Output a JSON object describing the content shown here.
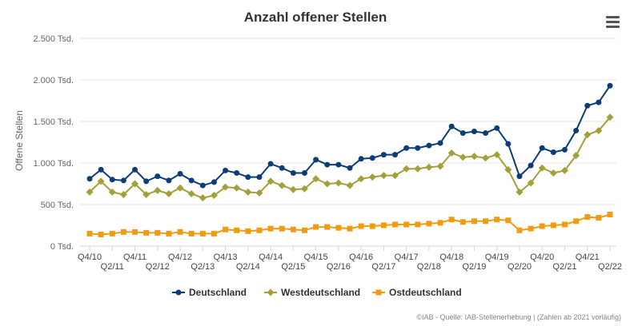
{
  "chart_data": {
    "type": "line",
    "title": "Anzahl offener Stellen",
    "ylabel": "Offene Stellen",
    "ylim": [
      0,
      2500
    ],
    "yticks": [
      {
        "value": 0,
        "label": "0 Tsd."
      },
      {
        "value": 500,
        "label": "500 Tsd."
      },
      {
        "value": 1000,
        "label": "1.000 Tsd."
      },
      {
        "value": 1500,
        "label": "1.500 Tsd."
      },
      {
        "value": 2000,
        "label": "2.000 Tsd."
      },
      {
        "value": 2500,
        "label": "2.500 Tsd."
      }
    ],
    "grid": true,
    "legend_position": "bottom-center",
    "categories": [
      "Q4/10",
      "Q1/11",
      "Q2/11",
      "Q3/11",
      "Q4/11",
      "Q1/12",
      "Q2/12",
      "Q3/12",
      "Q4/12",
      "Q1/13",
      "Q2/13",
      "Q3/13",
      "Q4/13",
      "Q1/14",
      "Q2/14",
      "Q3/14",
      "Q4/14",
      "Q1/15",
      "Q2/15",
      "Q3/15",
      "Q4/15",
      "Q1/16",
      "Q2/16",
      "Q3/16",
      "Q4/16",
      "Q1/17",
      "Q2/17",
      "Q3/17",
      "Q4/17",
      "Q1/18",
      "Q2/18",
      "Q3/18",
      "Q4/18",
      "Q1/19",
      "Q2/19",
      "Q3/19",
      "Q4/19",
      "Q1/20",
      "Q2/20",
      "Q3/20",
      "Q4/20",
      "Q1/21",
      "Q2/21",
      "Q3/21",
      "Q4/21",
      "Q1/22",
      "Q2/22"
    ],
    "x_tick_labels": [
      {
        "index": 0,
        "label": "Q4/10",
        "row": 0
      },
      {
        "index": 2,
        "label": "Q2/11",
        "row": 1
      },
      {
        "index": 4,
        "label": "Q4/11",
        "row": 0
      },
      {
        "index": 6,
        "label": "Q2/12",
        "row": 1
      },
      {
        "index": 8,
        "label": "Q4/12",
        "row": 0
      },
      {
        "index": 10,
        "label": "Q2/13",
        "row": 1
      },
      {
        "index": 12,
        "label": "Q4/13",
        "row": 0
      },
      {
        "index": 14,
        "label": "Q2/14",
        "row": 1
      },
      {
        "index": 16,
        "label": "Q4/14",
        "row": 0
      },
      {
        "index": 18,
        "label": "Q2/15",
        "row": 1
      },
      {
        "index": 20,
        "label": "Q4/15",
        "row": 0
      },
      {
        "index": 22,
        "label": "Q2/16",
        "row": 1
      },
      {
        "index": 24,
        "label": "Q4/16",
        "row": 0
      },
      {
        "index": 26,
        "label": "Q2/17",
        "row": 1
      },
      {
        "index": 28,
        "label": "Q4/17",
        "row": 0
      },
      {
        "index": 30,
        "label": "Q2/18",
        "row": 1
      },
      {
        "index": 32,
        "label": "Q4/18",
        "row": 0
      },
      {
        "index": 34,
        "label": "Q2/19",
        "row": 1
      },
      {
        "index": 36,
        "label": "Q4/19",
        "row": 0
      },
      {
        "index": 38,
        "label": "Q2/20",
        "row": 1
      },
      {
        "index": 40,
        "label": "Q4/20",
        "row": 0
      },
      {
        "index": 42,
        "label": "Q2/21",
        "row": 1
      },
      {
        "index": 44,
        "label": "Q4/21",
        "row": 0
      },
      {
        "index": 46,
        "label": "Q2/22",
        "row": 1
      }
    ],
    "series": [
      {
        "name": "Deutschland",
        "color": "#0b3d78",
        "marker": "circle",
        "values": [
          810,
          920,
          800,
          790,
          920,
          780,
          840,
          790,
          870,
          790,
          730,
          770,
          910,
          880,
          830,
          830,
          990,
          940,
          880,
          880,
          1040,
          980,
          980,
          940,
          1050,
          1060,
          1100,
          1100,
          1180,
          1180,
          1210,
          1240,
          1440,
          1360,
          1380,
          1360,
          1420,
          1230,
          840,
          970,
          1180,
          1130,
          1160,
          1390,
          1690,
          1730,
          1930
        ]
      },
      {
        "name": "Westdeutschland",
        "color": "#a3a03a",
        "marker": "diamond",
        "values": [
          650,
          780,
          650,
          620,
          750,
          620,
          670,
          630,
          700,
          630,
          580,
          610,
          710,
          700,
          650,
          640,
          780,
          730,
          680,
          690,
          810,
          750,
          760,
          730,
          810,
          830,
          850,
          850,
          930,
          930,
          950,
          960,
          1120,
          1070,
          1080,
          1060,
          1100,
          920,
          650,
          760,
          940,
          880,
          910,
          1090,
          1340,
          1390,
          1550
        ]
      },
      {
        "name": "Ostdeutschland",
        "color": "#f09c12",
        "marker": "square",
        "values": [
          150,
          140,
          150,
          170,
          170,
          160,
          160,
          150,
          170,
          150,
          150,
          150,
          200,
          190,
          180,
          190,
          210,
          210,
          200,
          190,
          230,
          230,
          220,
          210,
          240,
          240,
          250,
          260,
          260,
          260,
          270,
          280,
          320,
          290,
          300,
          300,
          320,
          310,
          190,
          210,
          240,
          250,
          260,
          300,
          350,
          340,
          380
        ]
      }
    ]
  },
  "menu": {
    "icon": "hamburger-menu-icon"
  },
  "credits": "©IAB - Quelle: IAB-Stellenerhebung | (Zahlen ab 2021 vorläufig)"
}
